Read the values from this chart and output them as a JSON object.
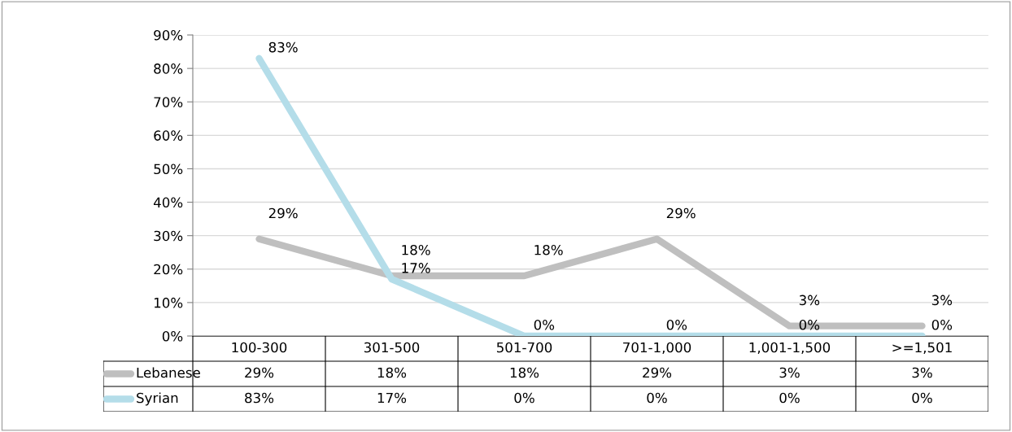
{
  "chart_data": {
    "type": "line",
    "categories": [
      "100-300",
      "301-500",
      "501-700",
      "701-1,000",
      "1,001-1,500",
      ">=1,501"
    ],
    "series": [
      {
        "name": "Lebanese",
        "color": "#bfbfbf",
        "values": [
          29,
          18,
          18,
          29,
          3,
          3
        ],
        "value_labels": [
          "29%",
          "18%",
          "18%",
          "29%",
          "3%",
          "3%"
        ]
      },
      {
        "name": "Syrian",
        "color": "#b4dde9",
        "values": [
          83,
          17,
          0,
          0,
          0,
          0
        ],
        "value_labels": [
          "83%",
          "17%",
          "0%",
          "0%",
          "0%",
          "0%"
        ]
      }
    ],
    "ylim": [
      0,
      90
    ],
    "yticks": [
      {
        "value": 0,
        "label": "0%"
      },
      {
        "value": 10,
        "label": "10%"
      },
      {
        "value": 20,
        "label": "20%"
      },
      {
        "value": 30,
        "label": "30%"
      },
      {
        "value": 40,
        "label": "40%"
      },
      {
        "value": 50,
        "label": "50%"
      },
      {
        "value": 60,
        "label": "60%"
      },
      {
        "value": 70,
        "label": "70%"
      },
      {
        "value": 80,
        "label": "80%"
      },
      {
        "value": 90,
        "label": "90%"
      }
    ],
    "grid": "y",
    "legend": "bottom left",
    "marker": "none",
    "line_style": "solid"
  }
}
